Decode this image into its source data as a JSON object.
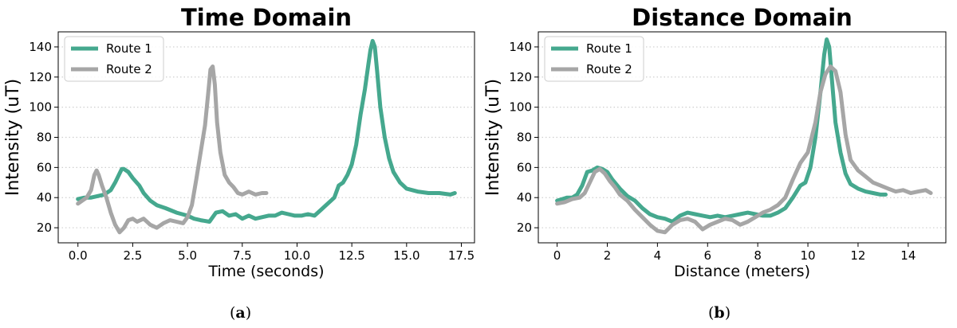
{
  "colors": {
    "route1": "#45A88E",
    "route2": "#A6A6A6",
    "grid": "#CFCFCF"
  },
  "captions": [
    {
      "open": "(",
      "letter": "a",
      "close": ")"
    },
    {
      "open": "(",
      "letter": "b",
      "close": ")"
    }
  ],
  "chart_data": [
    {
      "type": "line",
      "title": "Time Domain",
      "xlabel": "Time (seconds)",
      "ylabel": "Intensity (uT)",
      "xlim": [
        -0.9,
        18.1
      ],
      "ylim": [
        10,
        150
      ],
      "xticks": [
        0.0,
        2.5,
        5.0,
        7.5,
        10.0,
        12.5,
        15.0,
        17.5
      ],
      "xtick_labels": [
        "0.0",
        "2.5",
        "5.0",
        "7.5",
        "10.0",
        "12.5",
        "15.0",
        "17.5"
      ],
      "yticks": [
        20,
        40,
        60,
        80,
        100,
        120,
        140
      ],
      "ytick_labels": [
        "20",
        "40",
        "60",
        "80",
        "100",
        "120",
        "140"
      ],
      "grid": "horizontal-dotted",
      "legend": "top-left",
      "series": [
        {
          "name": "Route 1",
          "color": "#45A88E",
          "x": [
            0.0,
            0.3,
            0.6,
            0.9,
            1.2,
            1.5,
            1.7,
            1.9,
            2.0,
            2.1,
            2.3,
            2.5,
            2.8,
            3.0,
            3.3,
            3.6,
            4.0,
            4.5,
            5.0,
            5.3,
            5.6,
            6.0,
            6.3,
            6.6,
            6.9,
            7.2,
            7.5,
            7.8,
            8.1,
            8.4,
            8.7,
            9.0,
            9.3,
            9.6,
            9.9,
            10.2,
            10.5,
            10.8,
            11.1,
            11.4,
            11.7,
            11.9,
            12.1,
            12.3,
            12.5,
            12.7,
            12.9,
            13.1,
            13.25,
            13.35,
            13.45,
            13.55,
            13.65,
            13.8,
            14.0,
            14.2,
            14.4,
            14.7,
            15.0,
            15.5,
            16.0,
            16.5,
            17.0,
            17.2
          ],
          "y": [
            39,
            40,
            40,
            41,
            42,
            45,
            50,
            56,
            59,
            59,
            57,
            53,
            48,
            43,
            38,
            35,
            33,
            30,
            28,
            26,
            25,
            24,
            30,
            31,
            28,
            29,
            26,
            28,
            26,
            27,
            28,
            28,
            30,
            29,
            28,
            28,
            29,
            28,
            32,
            36,
            40,
            48,
            50,
            55,
            62,
            75,
            95,
            112,
            128,
            138,
            144,
            140,
            125,
            100,
            80,
            66,
            57,
            50,
            46,
            44,
            43,
            43,
            42,
            43
          ]
        },
        {
          "name": "Route 2",
          "color": "#A6A6A6",
          "x": [
            0.0,
            0.2,
            0.4,
            0.6,
            0.75,
            0.85,
            0.95,
            1.1,
            1.3,
            1.5,
            1.7,
            1.9,
            2.1,
            2.3,
            2.5,
            2.7,
            3.0,
            3.3,
            3.6,
            3.9,
            4.2,
            4.5,
            4.8,
            5.0,
            5.2,
            5.4,
            5.6,
            5.8,
            5.95,
            6.05,
            6.15,
            6.25,
            6.35,
            6.5,
            6.7,
            6.9,
            7.1,
            7.3,
            7.5,
            7.8,
            8.1,
            8.4,
            8.6
          ],
          "y": [
            36,
            38,
            40,
            45,
            55,
            58,
            55,
            48,
            40,
            30,
            22,
            17,
            20,
            25,
            26,
            24,
            26,
            22,
            20,
            23,
            25,
            24,
            23,
            27,
            35,
            52,
            70,
            88,
            110,
            125,
            127,
            115,
            90,
            70,
            55,
            50,
            47,
            43,
            42,
            44,
            42,
            43,
            43
          ]
        }
      ]
    },
    {
      "type": "line",
      "title": "Distance Domain",
      "xlabel": "Distance (meters)",
      "ylabel": "Intensity (uT)",
      "xlim": [
        -0.75,
        15.5
      ],
      "ylim": [
        10,
        150
      ],
      "xticks": [
        0,
        2,
        4,
        6,
        8,
        10,
        12,
        14
      ],
      "xtick_labels": [
        "0",
        "2",
        "4",
        "6",
        "8",
        "10",
        "12",
        "14"
      ],
      "yticks": [
        20,
        40,
        60,
        80,
        100,
        120,
        140
      ],
      "ytick_labels": [
        "20",
        "40",
        "60",
        "80",
        "100",
        "120",
        "140"
      ],
      "grid": "horizontal-dotted",
      "legend": "top-left",
      "series": [
        {
          "name": "Route 1",
          "color": "#45A88E",
          "x": [
            0.0,
            0.2,
            0.4,
            0.6,
            0.8,
            1.0,
            1.2,
            1.4,
            1.6,
            1.8,
            2.0,
            2.2,
            2.5,
            2.8,
            3.1,
            3.4,
            3.7,
            4.0,
            4.3,
            4.6,
            4.9,
            5.2,
            5.5,
            5.8,
            6.1,
            6.4,
            6.7,
            7.0,
            7.3,
            7.6,
            7.9,
            8.2,
            8.5,
            8.8,
            9.1,
            9.4,
            9.7,
            9.9,
            10.1,
            10.3,
            10.5,
            10.65,
            10.75,
            10.85,
            10.95,
            11.1,
            11.3,
            11.5,
            11.7,
            12.0,
            12.3,
            12.6,
            12.9,
            13.1
          ],
          "y": [
            38,
            39,
            40,
            40,
            42,
            48,
            57,
            58,
            60,
            59,
            57,
            52,
            46,
            41,
            38,
            33,
            29,
            27,
            26,
            24,
            28,
            30,
            29,
            28,
            27,
            28,
            27,
            28,
            29,
            30,
            29,
            28,
            28,
            30,
            33,
            40,
            48,
            50,
            60,
            80,
            110,
            135,
            145,
            140,
            120,
            90,
            70,
            56,
            49,
            46,
            44,
            43,
            42,
            42
          ]
        },
        {
          "name": "Route 2",
          "color": "#A6A6A6",
          "x": [
            0.0,
            0.3,
            0.6,
            0.9,
            1.1,
            1.3,
            1.5,
            1.7,
            1.9,
            2.1,
            2.3,
            2.5,
            2.8,
            3.1,
            3.4,
            3.7,
            4.0,
            4.3,
            4.6,
            4.9,
            5.2,
            5.5,
            5.8,
            6.1,
            6.4,
            6.7,
            7.0,
            7.3,
            7.6,
            7.9,
            8.2,
            8.5,
            8.8,
            9.1,
            9.4,
            9.7,
            10.0,
            10.3,
            10.5,
            10.7,
            10.9,
            11.1,
            11.3,
            11.5,
            11.7,
            12.0,
            12.3,
            12.6,
            12.9,
            13.2,
            13.5,
            13.8,
            14.1,
            14.4,
            14.7,
            14.9
          ],
          "y": [
            36,
            37,
            39,
            40,
            43,
            50,
            57,
            59,
            56,
            51,
            47,
            42,
            38,
            32,
            27,
            22,
            18,
            17,
            22,
            25,
            26,
            24,
            19,
            22,
            24,
            26,
            25,
            22,
            24,
            27,
            30,
            32,
            35,
            40,
            52,
            63,
            70,
            90,
            110,
            122,
            127,
            124,
            110,
            82,
            65,
            58,
            54,
            50,
            48,
            46,
            44,
            45,
            43,
            44,
            45,
            43
          ]
        }
      ]
    }
  ]
}
